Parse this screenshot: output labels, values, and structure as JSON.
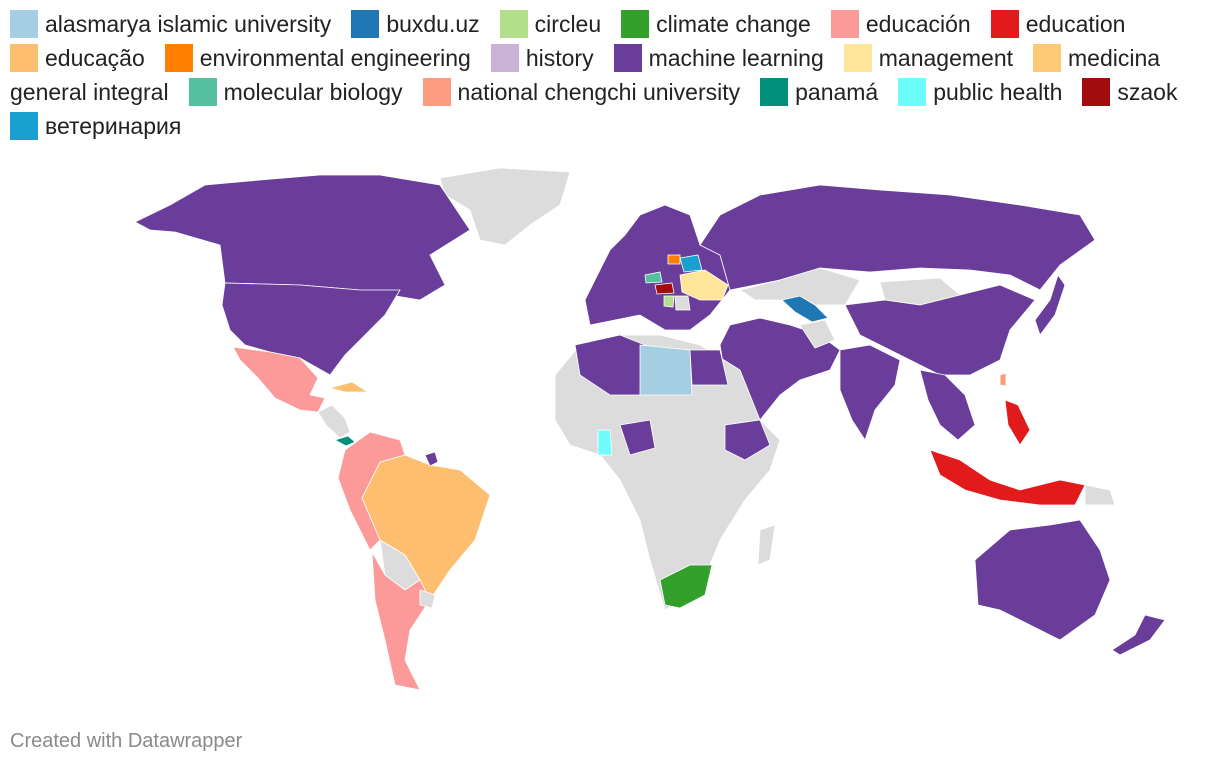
{
  "legend": [
    {
      "label": "alasmarya islamic university",
      "color": "#a6cee3"
    },
    {
      "label": "buxdu.uz",
      "color": "#1f78b4"
    },
    {
      "label": "circleu",
      "color": "#b2df8a"
    },
    {
      "label": "climate change",
      "color": "#33a02c"
    },
    {
      "label": "educación",
      "color": "#fb9a99"
    },
    {
      "label": "education",
      "color": "#e31a1c"
    },
    {
      "label": "educação",
      "color": "#fdbf6f"
    },
    {
      "label": "environmental engineering",
      "color": "#ff7f00"
    },
    {
      "label": "history",
      "color": "#cab2d6"
    },
    {
      "label": "machine learning",
      "color": "#6a3d9a"
    },
    {
      "label": "management",
      "color": "#ffe599"
    },
    {
      "label": "medicina",
      "color": "#fdc975"
    },
    {
      "label": "general integral",
      "color": ""
    },
    {
      "label": "molecular biology",
      "color": "#54c0a0"
    },
    {
      "label": "national chengchi university",
      "color": "#fc9c80"
    },
    {
      "label": "panamá",
      "color": "#008f7a"
    },
    {
      "label": "public health",
      "color": "#6ffcfc"
    },
    {
      "label": "szaok",
      "color": "#a10c0c"
    },
    {
      "label": "ветеринария",
      "color": "#1aa0d0"
    }
  ],
  "colors": {
    "no_data": "#dcdcdc",
    "machine_learning": "#6a3d9a",
    "educacion": "#fb9a99",
    "educacao": "#fdbf6f",
    "education": "#e31a1c",
    "climate_change": "#33a02c",
    "alasmarya": "#a6cee3",
    "buxdu": "#1f78b4",
    "management": "#ffe599",
    "panama": "#008f7a",
    "public_health": "#6ffcfc",
    "szaok": "#a10c0c",
    "veterinaria": "#1aa0d0",
    "env_eng": "#ff7f00",
    "mol_bio": "#54c0a0",
    "circleu": "#b2df8a",
    "chengchi": "#fc9c80"
  },
  "credit": "Created with Datawrapper"
}
